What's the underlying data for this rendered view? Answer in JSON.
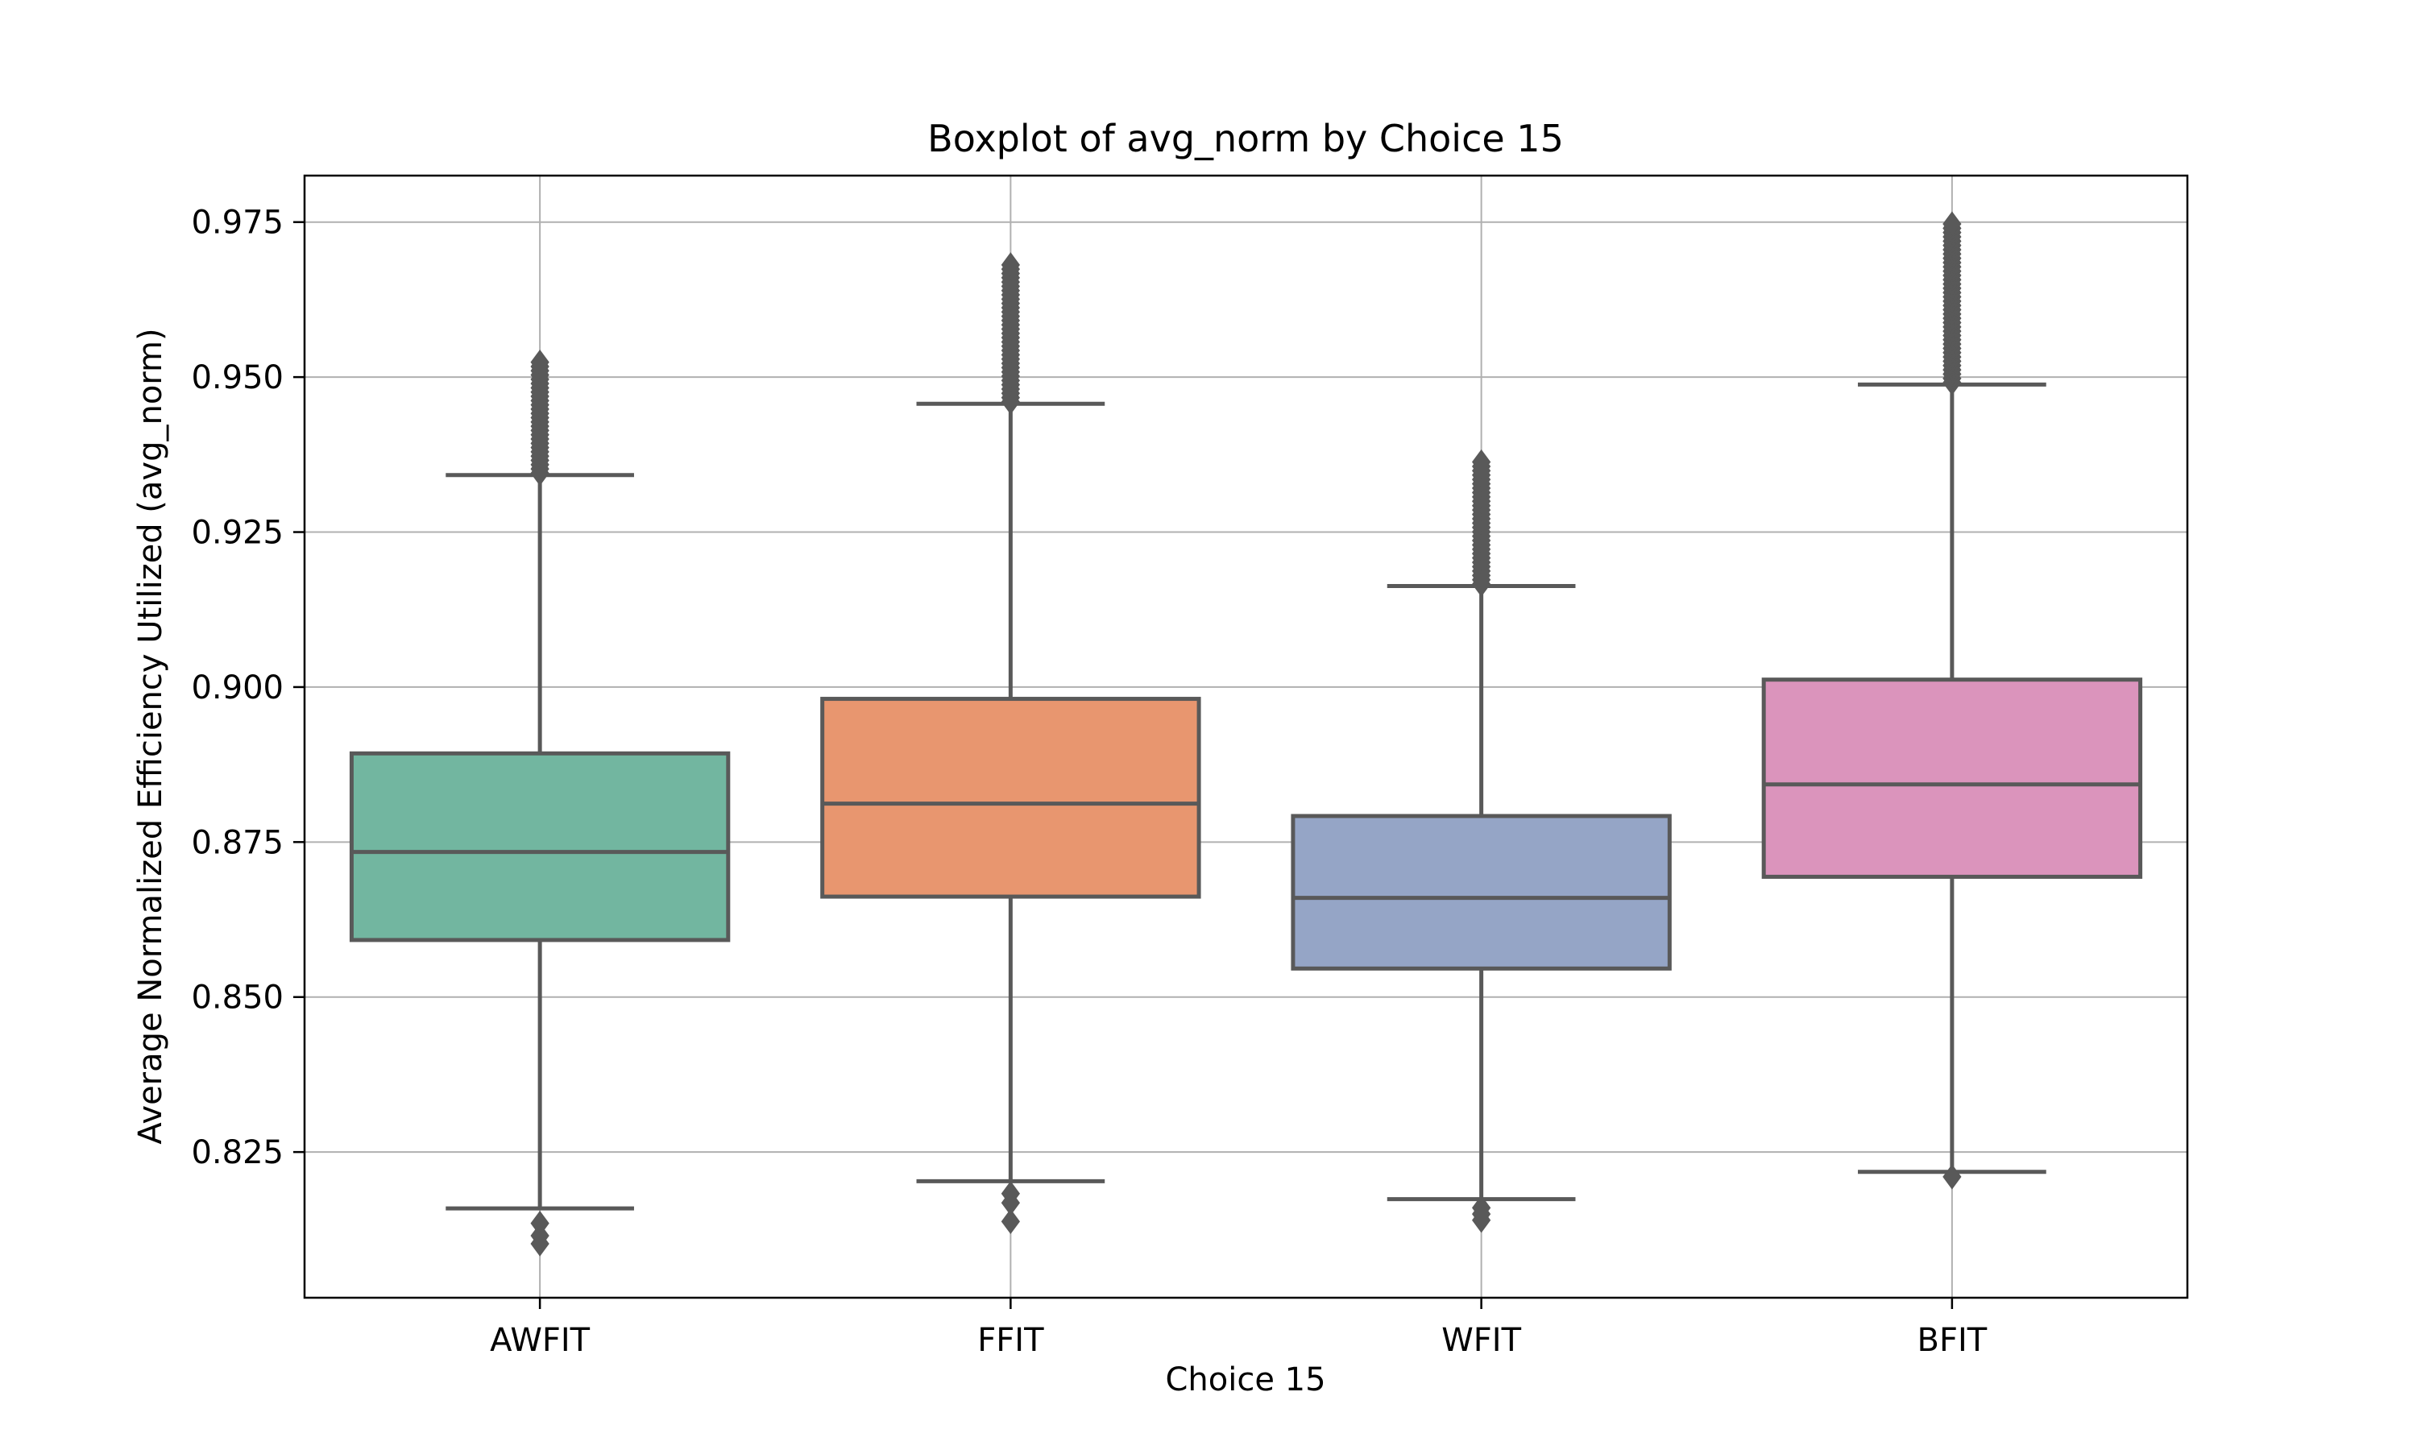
{
  "chart_data": {
    "type": "box",
    "title": "Boxplot of avg_norm by Choice 15",
    "xlabel": "Choice 15",
    "ylabel": "Average Normalized Efficiency Utilized (avg_norm)",
    "ylim": [
      0.8015,
      0.9825
    ],
    "yticks": [
      0.825,
      0.85,
      0.875,
      0.9,
      0.925,
      0.95,
      0.975
    ],
    "ytick_labels": [
      "0.825",
      "0.850",
      "0.875",
      "0.900",
      "0.925",
      "0.950",
      "0.975"
    ],
    "grid": true,
    "categories": [
      "AWFIT",
      "FFIT",
      "WFIT",
      "BFIT"
    ],
    "boxes": [
      {
        "category": "AWFIT",
        "color": "#72b6a0",
        "whisker_low": 0.8159,
        "q1": 0.8592,
        "median": 0.8734,
        "q3": 0.8893,
        "whisker_high": 0.9342,
        "outliers_low": [
          0.8135,
          0.8115,
          0.8102
        ],
        "outliers_high_range": [
          0.9345,
          0.9524
        ]
      },
      {
        "category": "FFIT",
        "color": "#e8966f",
        "whisker_low": 0.8203,
        "q1": 0.8662,
        "median": 0.8812,
        "q3": 0.8981,
        "whisker_high": 0.9457,
        "outliers_low": [
          0.8183,
          0.8168,
          0.8138
        ],
        "outliers_high_range": [
          0.946,
          0.9681
        ]
      },
      {
        "category": "WFIT",
        "color": "#95a5c6",
        "whisker_low": 0.8174,
        "q1": 0.8546,
        "median": 0.866,
        "q3": 0.8792,
        "whisker_high": 0.9163,
        "outliers_low": [
          0.816,
          0.815,
          0.814
        ],
        "outliers_high_range": [
          0.9166,
          0.9363
        ]
      },
      {
        "category": "BFIT",
        "color": "#db94bc",
        "whisker_low": 0.8218,
        "q1": 0.8694,
        "median": 0.8843,
        "q3": 0.9012,
        "whisker_high": 0.9488,
        "outliers_low": [
          0.821
        ],
        "outliers_high_range": [
          0.9491,
          0.9747
        ]
      }
    ]
  }
}
